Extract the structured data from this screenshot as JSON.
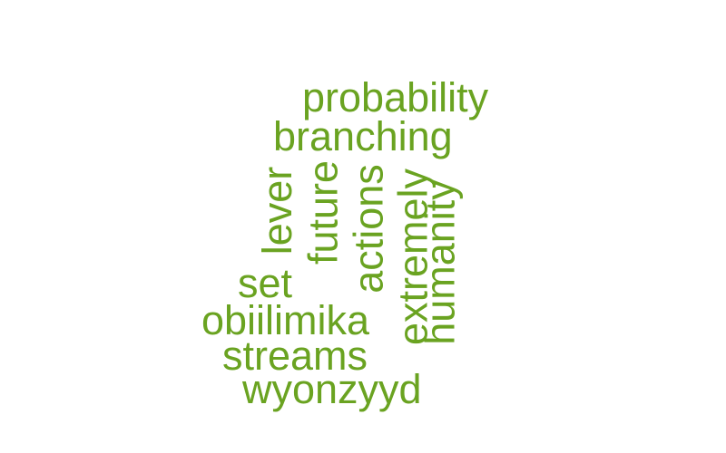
{
  "word_cloud": {
    "color": "#6aa321",
    "words": [
      {
        "text": "probability",
        "orientation": "horizontal"
      },
      {
        "text": "branching",
        "orientation": "horizontal"
      },
      {
        "text": "lever",
        "orientation": "vertical"
      },
      {
        "text": "future",
        "orientation": "vertical"
      },
      {
        "text": "actions",
        "orientation": "vertical"
      },
      {
        "text": "extremely",
        "orientation": "vertical"
      },
      {
        "text": "humanity",
        "orientation": "vertical"
      },
      {
        "text": "set",
        "orientation": "horizontal"
      },
      {
        "text": "obiilimika",
        "orientation": "horizontal"
      },
      {
        "text": "streams",
        "orientation": "horizontal"
      },
      {
        "text": "wyonzyyd",
        "orientation": "horizontal"
      }
    ]
  }
}
